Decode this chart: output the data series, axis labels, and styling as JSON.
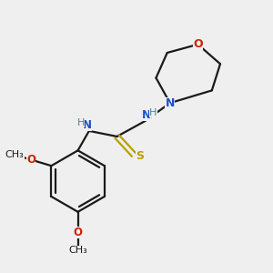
{
  "background_color": "#efefef",
  "bond_color": "#1a1a1a",
  "figsize": [
    3.0,
    3.0
  ],
  "dpi": 100,
  "N_color": "#1a50c8",
  "O_color": "#cc2200",
  "S_color": "#b8a000",
  "H_color": "#508090",
  "xlim": [
    0.05,
    0.95
  ],
  "ylim": [
    0.02,
    0.98
  ]
}
